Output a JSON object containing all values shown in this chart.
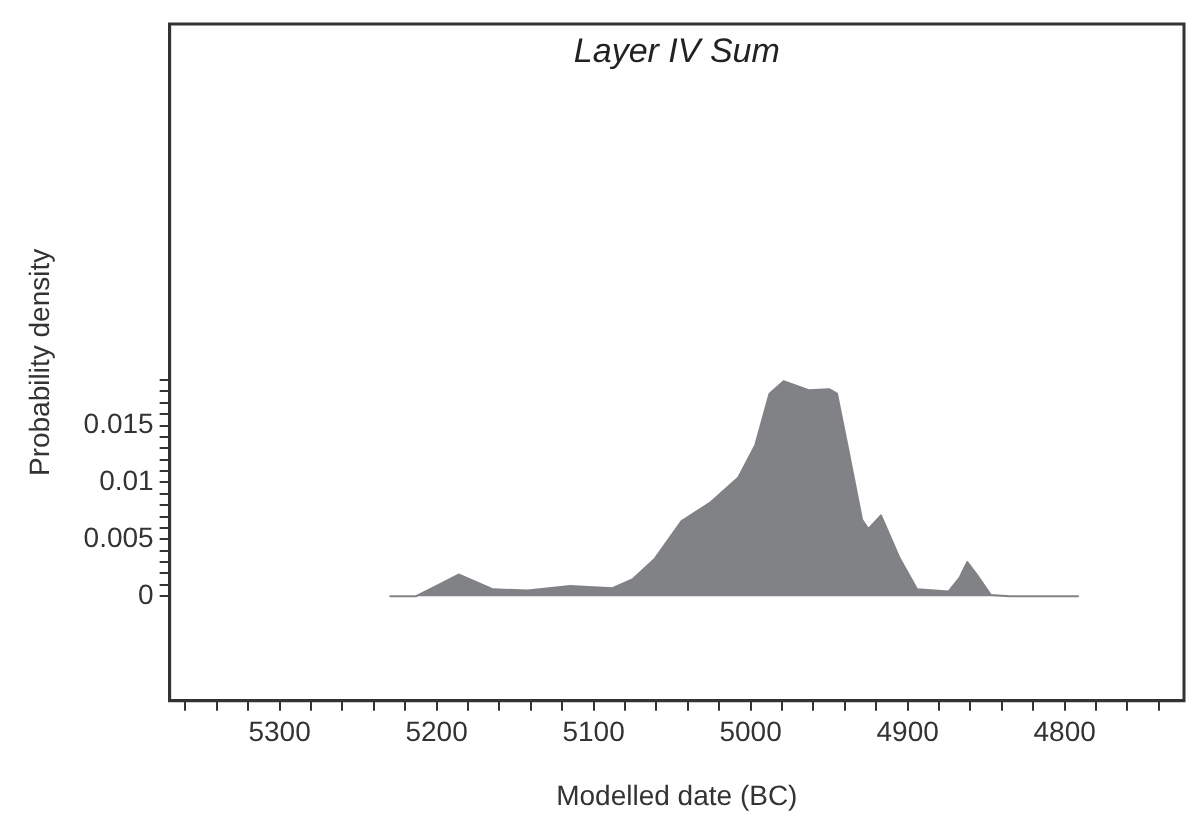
{
  "chart_data": {
    "type": "area",
    "title": "Layer IV Sum",
    "xlabel": "Modelled date (BC)",
    "ylabel": "Probability density",
    "x": [
      5230,
      5213,
      5200,
      5186,
      5164,
      5142,
      5115,
      5088,
      5075,
      5061,
      5044,
      5026,
      5008,
      4997,
      4988,
      4979,
      4963,
      4950,
      4945,
      4938,
      4929,
      4925,
      4917,
      4905,
      4894,
      4874,
      4867,
      4862,
      4856,
      4847,
      4835,
      4791
    ],
    "series": [
      {
        "color": "#808285",
        "values": [
          0,
          0,
          0.0009,
          0.0019,
          0.0006,
          0.0005,
          0.0009,
          0.0007,
          0.0015,
          0.0033,
          0.0066,
          0.0082,
          0.0104,
          0.0133,
          0.0178,
          0.0189,
          0.0181,
          0.0182,
          0.0178,
          0.013,
          0.0067,
          0.0059,
          0.0071,
          0.0033,
          0.0006,
          0.0004,
          0.0016,
          0.003,
          0.0019,
          0.0001,
          0,
          0
        ]
      }
    ],
    "xlim": [
      5370,
      4724
    ],
    "ylim": [
      -0.0092,
      0.0503
    ],
    "xticks": [
      {
        "value": 5360,
        "label": null
      },
      {
        "value": 5340,
        "label": null
      },
      {
        "value": 5320,
        "label": null
      },
      5300,
      {
        "value": 5280,
        "label": null
      },
      {
        "value": 5260,
        "label": null
      },
      {
        "value": 5240,
        "label": null
      },
      {
        "value": 5220,
        "label": null
      },
      5200,
      {
        "value": 5180,
        "label": null
      },
      {
        "value": 5160,
        "label": null
      },
      {
        "value": 5140,
        "label": null
      },
      {
        "value": 5120,
        "label": null
      },
      5100,
      {
        "value": 5080,
        "label": null
      },
      {
        "value": 5060,
        "label": null
      },
      {
        "value": 5040,
        "label": null
      },
      {
        "value": 5020,
        "label": null
      },
      5000,
      {
        "value": 4980,
        "label": null
      },
      {
        "value": 4960,
        "label": null
      },
      {
        "value": 4940,
        "label": null
      },
      {
        "value": 4920,
        "label": null
      },
      4900,
      {
        "value": 4880,
        "label": null
      },
      {
        "value": 4860,
        "label": null
      },
      {
        "value": 4840,
        "label": null
      },
      {
        "value": 4820,
        "label": null
      },
      4800,
      {
        "value": 4780,
        "label": null
      },
      {
        "value": 4760,
        "label": null
      },
      {
        "value": 4740,
        "label": null
      }
    ],
    "yticks": [
      0,
      {
        "value": 0.001,
        "label": null
      },
      {
        "value": 0.002,
        "label": null
      },
      {
        "value": 0.003,
        "label": null
      },
      {
        "value": 0.004,
        "label": null
      },
      0.005,
      {
        "value": 0.006,
        "label": null
      },
      {
        "value": 0.007,
        "label": null
      },
      {
        "value": 0.008,
        "label": null
      },
      {
        "value": 0.009,
        "label": null
      },
      0.01,
      {
        "value": 0.011,
        "label": null
      },
      {
        "value": 0.012,
        "label": null
      },
      {
        "value": 0.013,
        "label": null
      },
      {
        "value": 0.014,
        "label": null
      },
      0.015,
      {
        "value": 0.016,
        "label": null
      },
      {
        "value": 0.017,
        "label": null
      },
      {
        "value": 0.018,
        "label": null
      },
      {
        "value": 0.019,
        "label": null
      }
    ],
    "grid": false,
    "legend": false
  }
}
